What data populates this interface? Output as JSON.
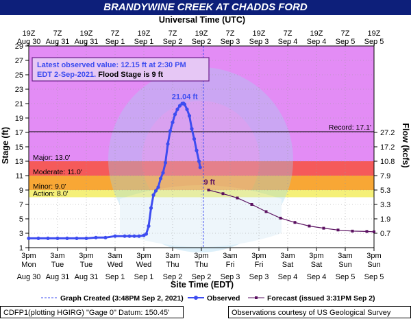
{
  "title": "BRANDYWINE CREEK AT CHADDS FORD",
  "chart_data": {
    "type": "line",
    "top_axis_label": "Universal Time (UTC)",
    "bottom_axis_label": "Site Time (EDT)",
    "ylabel": "Stage (ft)",
    "y2label": "Flow (kcfs)",
    "ylim": [
      1,
      29
    ],
    "xlim_hours": [
      0,
      144
    ],
    "y_ticks": [
      "1",
      "3",
      "5",
      "7",
      "9",
      "11",
      "13",
      "15",
      "17",
      "19",
      "21",
      "23",
      "25",
      "27",
      "29"
    ],
    "flow_ticks": [
      {
        "stage": 3,
        "label": "0.7"
      },
      {
        "stage": 5,
        "label": "1.9"
      },
      {
        "stage": 7,
        "label": "3.3"
      },
      {
        "stage": 9,
        "label": "5.3"
      },
      {
        "stage": 11,
        "label": "7.9"
      },
      {
        "stage": 13,
        "label": "10.8"
      },
      {
        "stage": 15,
        "label": "17.2"
      },
      {
        "stage": 17,
        "label": "27.2"
      }
    ],
    "top_ticks": [
      {
        "hour": 0,
        "l1": "19Z",
        "l2": "Aug 30"
      },
      {
        "hour": 12,
        "l1": "7Z",
        "l2": "Aug 31"
      },
      {
        "hour": 24,
        "l1": "19Z",
        "l2": "Aug 31"
      },
      {
        "hour": 36,
        "l1": "7Z",
        "l2": "Sep 1"
      },
      {
        "hour": 48,
        "l1": "19Z",
        "l2": "Sep 1"
      },
      {
        "hour": 60,
        "l1": "7Z",
        "l2": "Sep 2"
      },
      {
        "hour": 72,
        "l1": "19Z",
        "l2": "Sep 2"
      },
      {
        "hour": 84,
        "l1": "7Z",
        "l2": "Sep 3"
      },
      {
        "hour": 96,
        "l1": "19Z",
        "l2": "Sep 3"
      },
      {
        "hour": 108,
        "l1": "7Z",
        "l2": "Sep 4"
      },
      {
        "hour": 120,
        "l1": "19Z",
        "l2": "Sep 4"
      },
      {
        "hour": 132,
        "l1": "7Z",
        "l2": "Sep 5"
      },
      {
        "hour": 144,
        "l1": "19Z",
        "l2": "Sep 5"
      }
    ],
    "bottom_ticks": [
      {
        "hour": 0,
        "l1": "3pm",
        "l2": "Mon",
        "l3": "Aug 30"
      },
      {
        "hour": 12,
        "l1": "3am",
        "l2": "Tue",
        "l3": "Aug 31"
      },
      {
        "hour": 24,
        "l1": "3pm",
        "l2": "Tue",
        "l3": "Aug 31"
      },
      {
        "hour": 36,
        "l1": "3am",
        "l2": "Wed",
        "l3": "Sep 1"
      },
      {
        "hour": 48,
        "l1": "3pm",
        "l2": "Wed",
        "l3": "Sep 1"
      },
      {
        "hour": 60,
        "l1": "3am",
        "l2": "Thu",
        "l3": "Sep 2"
      },
      {
        "hour": 72,
        "l1": "3pm",
        "l2": "Thu",
        "l3": "Sep 2"
      },
      {
        "hour": 84,
        "l1": "3am",
        "l2": "Fri",
        "l3": "Sep 3"
      },
      {
        "hour": 96,
        "l1": "3pm",
        "l2": "Fri",
        "l3": "Sep 3"
      },
      {
        "hour": 108,
        "l1": "3am",
        "l2": "Sat",
        "l3": "Sep 4"
      },
      {
        "hour": 120,
        "l1": "3pm",
        "l2": "Sat",
        "l3": "Sep 4"
      },
      {
        "hour": 132,
        "l1": "3am",
        "l2": "Sun",
        "l3": "Sep 5"
      },
      {
        "hour": 144,
        "l1": "3pm",
        "l2": "Sun",
        "l3": "Sep 5"
      }
    ],
    "bands": [
      {
        "name": "Major",
        "label": "Major: 13.0'",
        "from": 13,
        "to": 29,
        "color": "#e38cf5"
      },
      {
        "name": "Moderate",
        "label": "Moderate: 11.0'",
        "from": 11,
        "to": 13,
        "color": "#f55a5a"
      },
      {
        "name": "Minor",
        "label": "Minor: 9.0'",
        "from": 9,
        "to": 11,
        "color": "#f8a735"
      },
      {
        "name": "Action",
        "label": "Action: 8.0'",
        "from": 8,
        "to": 9,
        "color": "#f5f078"
      }
    ],
    "record": {
      "value": 17.1,
      "label": "Record: 17.1'"
    },
    "info_box": {
      "line1": "Latest observed value: 12.15 ft at 2:30 PM",
      "line2a": "EDT 2-Sep-2021.",
      "line2b": " Flood Stage is 9 ft"
    },
    "peak_label": "21.04 ft",
    "peak_point": {
      "hour": 64.5,
      "y": 21.04
    },
    "forecast_label": "9 ft",
    "graph_created_hour": 72.8,
    "series": [
      {
        "name": "Observed",
        "color": "#3d4cf0",
        "points": [
          [
            0,
            2.3
          ],
          [
            4,
            2.3
          ],
          [
            8,
            2.3
          ],
          [
            12,
            2.3
          ],
          [
            16,
            2.3
          ],
          [
            20,
            2.3
          ],
          [
            24,
            2.3
          ],
          [
            28,
            2.4
          ],
          [
            32,
            2.4
          ],
          [
            36,
            2.6
          ],
          [
            40,
            2.6
          ],
          [
            42,
            2.6
          ],
          [
            44,
            2.6
          ],
          [
            46,
            2.6
          ],
          [
            48,
            2.7
          ],
          [
            49,
            2.9
          ],
          [
            50,
            4.0
          ],
          [
            51,
            6.5
          ],
          [
            52,
            8.3
          ],
          [
            53,
            8.9
          ],
          [
            54,
            9.4
          ],
          [
            55,
            10.6
          ],
          [
            56,
            11.4
          ],
          [
            57,
            12.8
          ],
          [
            58,
            15.4
          ],
          [
            59,
            17.2
          ],
          [
            60,
            18.4
          ],
          [
            61,
            19.5
          ],
          [
            62,
            20.2
          ],
          [
            63,
            20.7
          ],
          [
            64,
            21.0
          ],
          [
            64.5,
            21.04
          ],
          [
            65,
            20.9
          ],
          [
            66,
            20.2
          ],
          [
            67,
            19.3
          ],
          [
            68,
            17.5
          ],
          [
            69,
            16.1
          ],
          [
            70,
            14.5
          ],
          [
            71,
            13.0
          ],
          [
            71.5,
            12.15
          ]
        ]
      },
      {
        "name": "Forecast (issued 3:31PM Sep 2)",
        "color": "#5a1060",
        "points": [
          [
            75,
            9.0
          ],
          [
            81,
            8.5
          ],
          [
            87,
            7.9
          ],
          [
            93,
            7.0
          ],
          [
            99,
            6.0
          ],
          [
            105,
            5.1
          ],
          [
            111,
            4.5
          ],
          [
            117,
            4.0
          ],
          [
            123,
            3.7
          ],
          [
            129,
            3.45
          ],
          [
            135,
            3.3
          ],
          [
            141,
            3.25
          ],
          [
            144,
            3.2
          ]
        ]
      }
    ],
    "legend": {
      "graph_created": "Graph Created (3:48PM Sep 2, 2021)",
      "observed": "Observed",
      "forecast": "Forecast (issued 3:31PM Sep 2)"
    },
    "colors": {
      "observed": "#3d4cf0",
      "forecast": "#5a1060",
      "title_bg": "#0d1f7a"
    }
  },
  "footer": {
    "left": "CDFP1(plotting HGIRG) \"Gage 0\" Datum: 150.45'",
    "right": "Observations courtesy of US Geological Survey"
  }
}
